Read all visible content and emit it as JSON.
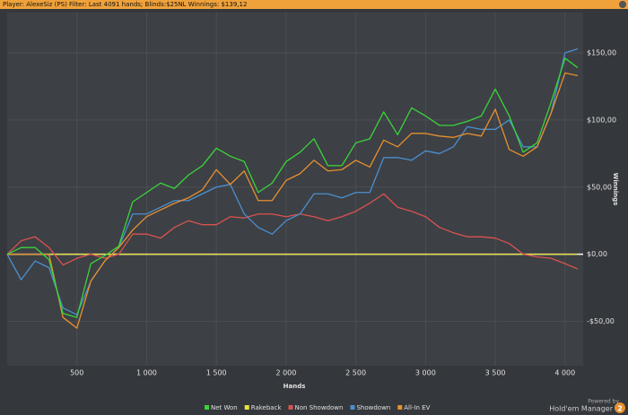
{
  "chart_data": {
    "type": "line",
    "title": "Player: AlexeSiz (PS) Filter: Last 4091 hands; Blinds:$25NL Winnings: $139,12",
    "xlabel": "Hands",
    "ylabel": "Winnings",
    "annotations": [
      "Powered by",
      "Hold'em Manager",
      "2"
    ],
    "x": [
      0,
      100,
      200,
      300,
      400,
      500,
      600,
      700,
      800,
      900,
      1000,
      1100,
      1200,
      1300,
      1400,
      1500,
      1600,
      1700,
      1800,
      1900,
      2000,
      2100,
      2200,
      2300,
      2400,
      2500,
      2600,
      2700,
      2800,
      2900,
      3000,
      3100,
      3200,
      3300,
      3400,
      3500,
      3600,
      3700,
      3800,
      3900,
      4000,
      4091
    ],
    "xlim": [
      0,
      4130
    ],
    "xticks": [
      500,
      {
        "value": 1000,
        "label": "1 000"
      },
      {
        "value": 1500,
        "label": "1 500"
      },
      {
        "value": 2000,
        "label": "2 000"
      },
      {
        "value": 2500,
        "label": "2 500"
      },
      {
        "value": 3000,
        "label": "3 000"
      },
      {
        "value": 3500,
        "label": "3 500"
      },
      {
        "value": 4000,
        "label": "4 000"
      }
    ],
    "ylim": [
      -83,
      180
    ],
    "yticks": [
      {
        "value": -50,
        "label": "-$50,00"
      },
      {
        "value": 0,
        "label": "$0,00"
      },
      {
        "value": 50,
        "label": "$50,00"
      },
      {
        "value": 100,
        "label": "$100,00"
      },
      {
        "value": 150,
        "label": "$150,00"
      }
    ],
    "grid": true,
    "legend": "bottom",
    "series": [
      {
        "name": "Net Won",
        "color": "#3ad43a",
        "values": [
          0,
          5,
          5,
          -4,
          -44,
          -47,
          -7,
          -1,
          6,
          39,
          46,
          53,
          49,
          59,
          66,
          79,
          73,
          69,
          46,
          53,
          69,
          76,
          86,
          66,
          66,
          83,
          86,
          106,
          89,
          109,
          103,
          96,
          96,
          99,
          103,
          123,
          103,
          76,
          83,
          113,
          146,
          139
        ]
      },
      {
        "name": "Rakeback",
        "color": "#e8e23a",
        "values": [
          0,
          0,
          0,
          0,
          0,
          0,
          0,
          0,
          0,
          0,
          0,
          0,
          0,
          0,
          0,
          0,
          0,
          0,
          0,
          0,
          0,
          0,
          0,
          0,
          0,
          0,
          0,
          0,
          0,
          0,
          0,
          0,
          0,
          0,
          0,
          0,
          0,
          0,
          0,
          0,
          0,
          0
        ]
      },
      {
        "name": "Non Showdown",
        "color": "#d9534f",
        "values": [
          0,
          10,
          13,
          5,
          -8,
          -3,
          0,
          -3,
          0,
          15,
          15,
          12,
          20,
          25,
          22,
          22,
          28,
          27,
          30,
          30,
          28,
          30,
          28,
          25,
          28,
          32,
          38,
          45,
          35,
          32,
          28,
          20,
          16,
          13,
          13,
          12,
          8,
          0,
          -2,
          -3,
          -7,
          -11
        ]
      },
      {
        "name": "Showdown",
        "color": "#4a90d0",
        "values": [
          0,
          -19,
          -5,
          -10,
          -40,
          -45,
          -20,
          -5,
          5,
          30,
          30,
          35,
          40,
          40,
          45,
          50,
          52,
          30,
          20,
          15,
          25,
          30,
          45,
          45,
          42,
          46,
          46,
          72,
          72,
          70,
          77,
          75,
          80,
          95,
          93,
          93,
          100,
          80,
          80,
          105,
          150,
          153
        ]
      },
      {
        "name": "All-In EV",
        "color": "#e8902e",
        "values": [
          0,
          0,
          0,
          0,
          -47,
          -55,
          -20,
          -5,
          5,
          18,
          28,
          33,
          38,
          42,
          48,
          63,
          52,
          62,
          40,
          40,
          55,
          60,
          70,
          62,
          63,
          70,
          65,
          85,
          80,
          90,
          90,
          88,
          87,
          90,
          88,
          108,
          78,
          73,
          80,
          105,
          135,
          133
        ]
      }
    ]
  }
}
